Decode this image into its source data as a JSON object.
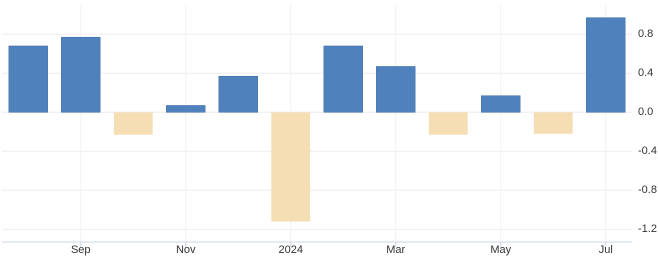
{
  "chart_data": {
    "type": "bar",
    "categories": [
      null,
      "Sep",
      null,
      "Nov",
      null,
      "2024",
      null,
      "Mar",
      null,
      "May",
      null,
      "Jul"
    ],
    "values": [
      0.68,
      0.77,
      -0.23,
      0.07,
      0.37,
      -1.12,
      0.68,
      0.47,
      -0.23,
      0.17,
      -0.22,
      0.97
    ],
    "color": "#4f81bd",
    "negative_color": "#f5deb3",
    "ylim": [
      -1.33,
      1.1
    ],
    "yticks": [
      -1.2,
      -0.8,
      -0.4,
      {
        "value": 0,
        "label": "0.0"
      },
      0.4,
      0.8
    ],
    "grid": true
  }
}
